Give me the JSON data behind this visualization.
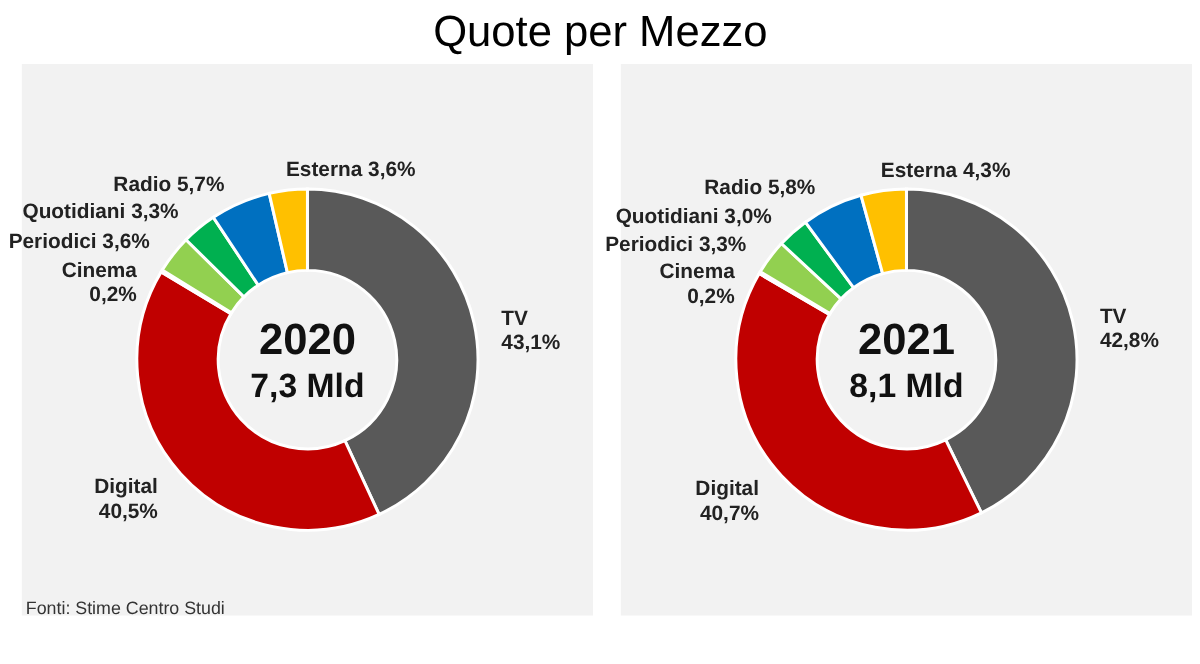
{
  "chart_data": [
    {
      "type": "donut",
      "title": "Quote per Mezzo",
      "categories": [
        "TV",
        "Digital",
        "Cinema",
        "Periodici",
        "Quotidiani",
        "Radio",
        "Esterna"
      ],
      "values": [
        43.1,
        40.5,
        0.2,
        3.6,
        3.3,
        5.7,
        3.6
      ],
      "colors": [
        "#595959",
        "#c00000",
        "#7030a0",
        "#92d050",
        "#00b050",
        "#0070c0",
        "#ffc000"
      ],
      "value_labels": [
        "43,1%",
        "40,5%",
        "0,2%",
        "3,6%",
        "3,3%",
        "5,7%",
        "3,6%"
      ],
      "annotations": [
        "2020",
        "7,3 Mld",
        "Fonti: Stime Centro Studi"
      ],
      "legend": false
    },
    {
      "type": "donut",
      "categories": [
        "TV",
        "Digital",
        "Cinema",
        "Periodici",
        "Quotidiani",
        "Radio",
        "Esterna"
      ],
      "values": [
        42.8,
        40.7,
        0.2,
        3.3,
        3.0,
        5.8,
        4.3
      ],
      "colors": [
        "#595959",
        "#c00000",
        "#7030a0",
        "#92d050",
        "#00b050",
        "#0070c0",
        "#ffc000"
      ],
      "value_labels": [
        "42,8%",
        "40,7%",
        "0,2%",
        "3,3%",
        "3,0%",
        "5,8%",
        "4,3%"
      ],
      "annotations": [
        "2021",
        "8,1 Mld"
      ],
      "legend": false
    }
  ]
}
